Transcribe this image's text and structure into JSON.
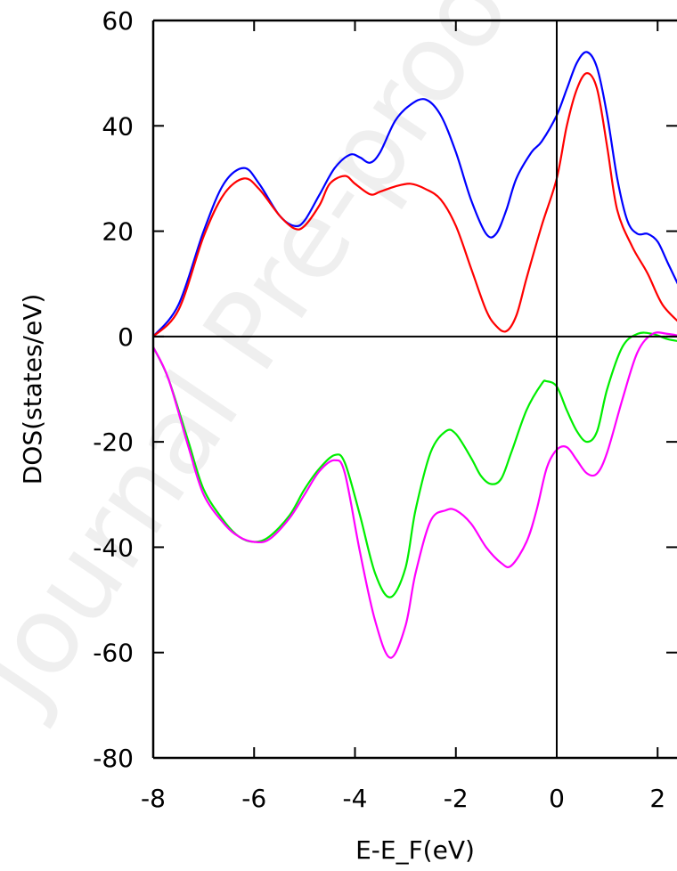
{
  "chart_data": {
    "type": "line",
    "title": "",
    "xlabel": "E-E_F(eV)",
    "ylabel": "DOS(states/eV)",
    "xlim": [
      -8,
      2.5
    ],
    "ylim": [
      -80,
      60
    ],
    "xticks": [
      -8,
      -6,
      -4,
      -2,
      0,
      2
    ],
    "yticks": [
      60,
      40,
      20,
      0,
      -20,
      -40,
      -60,
      -80
    ],
    "xtick_labels": [
      "-8",
      "-6",
      "-4",
      "-2",
      "0",
      "2"
    ],
    "ytick_labels": [
      "60",
      "40",
      "20",
      "0",
      "-20",
      "-40",
      "-60",
      "-80"
    ],
    "zero_lines": {
      "x": 0,
      "y": 0
    },
    "grid": false,
    "legend": "none",
    "watermark": "Journal Pre-proof",
    "series": [
      {
        "color": "#0000ff",
        "x": [
          -8.0,
          -7.5,
          -7.0,
          -6.6,
          -6.2,
          -5.9,
          -5.5,
          -5.2,
          -5.0,
          -4.7,
          -4.4,
          -4.1,
          -3.9,
          -3.7,
          -3.5,
          -3.2,
          -2.9,
          -2.6,
          -2.3,
          -2.0,
          -1.7,
          -1.4,
          -1.2,
          -1.0,
          -0.8,
          -0.5,
          -0.3,
          0.0,
          0.2,
          0.4,
          0.6,
          0.8,
          1.0,
          1.2,
          1.4,
          1.6,
          1.8,
          2.0,
          2.2,
          2.5
        ],
        "y": [
          0,
          6,
          20,
          29,
          32,
          29,
          23,
          21,
          22,
          27,
          32,
          34.5,
          34,
          33,
          35,
          41,
          44,
          45,
          42,
          35,
          26,
          19.5,
          19.5,
          24,
          30,
          35,
          37,
          42,
          47,
          52,
          54,
          51,
          42,
          30,
          22,
          19.5,
          19.5,
          18,
          14,
          8
        ]
      },
      {
        "color": "#ff0000",
        "x": [
          -8.0,
          -7.5,
          -7.0,
          -6.6,
          -6.2,
          -5.9,
          -5.5,
          -5.2,
          -5.0,
          -4.7,
          -4.5,
          -4.2,
          -4.0,
          -3.7,
          -3.5,
          -3.2,
          -2.9,
          -2.6,
          -2.3,
          -2.0,
          -1.7,
          -1.4,
          -1.2,
          -1.0,
          -0.8,
          -0.6,
          -0.3,
          0.0,
          0.2,
          0.4,
          0.6,
          0.8,
          1.0,
          1.2,
          1.5,
          1.8,
          2.1,
          2.5
        ],
        "y": [
          0,
          5,
          19,
          27,
          30,
          28,
          23,
          20.5,
          21,
          25,
          29,
          30.5,
          29,
          27,
          27.5,
          28.5,
          29,
          28,
          26,
          21,
          13,
          5,
          2,
          1,
          4,
          11,
          21,
          30,
          40,
          47,
          50,
          47,
          36,
          24,
          17,
          12,
          6,
          2
        ]
      },
      {
        "color": "#00ee00",
        "x": [
          -8.0,
          -7.7,
          -7.3,
          -7.0,
          -6.6,
          -6.3,
          -6.0,
          -5.7,
          -5.3,
          -5.0,
          -4.7,
          -4.4,
          -4.2,
          -3.9,
          -3.6,
          -3.3,
          -3.0,
          -2.8,
          -2.5,
          -2.2,
          -2.0,
          -1.7,
          -1.5,
          -1.3,
          -1.1,
          -0.9,
          -0.6,
          -0.3,
          -0.2,
          0.0,
          0.2,
          0.4,
          0.6,
          0.8,
          1.0,
          1.3,
          1.6,
          1.9,
          2.2,
          2.5
        ],
        "y": [
          -2,
          -8,
          -20,
          -29,
          -35,
          -38,
          -39,
          -38,
          -34,
          -29,
          -25,
          -22.5,
          -24,
          -34,
          -45,
          -49.5,
          -44,
          -33,
          -22,
          -18,
          -18.5,
          -23,
          -26.5,
          -28,
          -27,
          -22,
          -14,
          -9,
          -8.5,
          -9.5,
          -14,
          -18,
          -20,
          -18,
          -10,
          -2,
          0.5,
          0.5,
          -0.5,
          -1
        ]
      },
      {
        "color": "#ff00ff",
        "x": [
          -8.0,
          -7.7,
          -7.3,
          -7.0,
          -6.6,
          -6.3,
          -6.0,
          -5.7,
          -5.3,
          -5.0,
          -4.7,
          -4.4,
          -4.2,
          -3.9,
          -3.6,
          -3.3,
          -3.0,
          -2.8,
          -2.5,
          -2.2,
          -2.0,
          -1.7,
          -1.4,
          -1.1,
          -0.9,
          -0.6,
          -0.4,
          -0.2,
          0.0,
          0.2,
          0.4,
          0.6,
          0.8,
          1.0,
          1.3,
          1.6,
          1.9,
          2.2,
          2.5
        ],
        "y": [
          -2,
          -8,
          -21,
          -30,
          -35.5,
          -38,
          -39,
          -38.5,
          -34.5,
          -30,
          -25.5,
          -23.5,
          -26,
          -41,
          -54,
          -61,
          -55,
          -45,
          -35,
          -33,
          -33,
          -35.5,
          -40,
          -43,
          -43.5,
          -39,
          -33,
          -25,
          -21.5,
          -21,
          -23.5,
          -26,
          -26,
          -22,
          -12,
          -3,
          0.5,
          0.5,
          0
        ]
      }
    ]
  }
}
